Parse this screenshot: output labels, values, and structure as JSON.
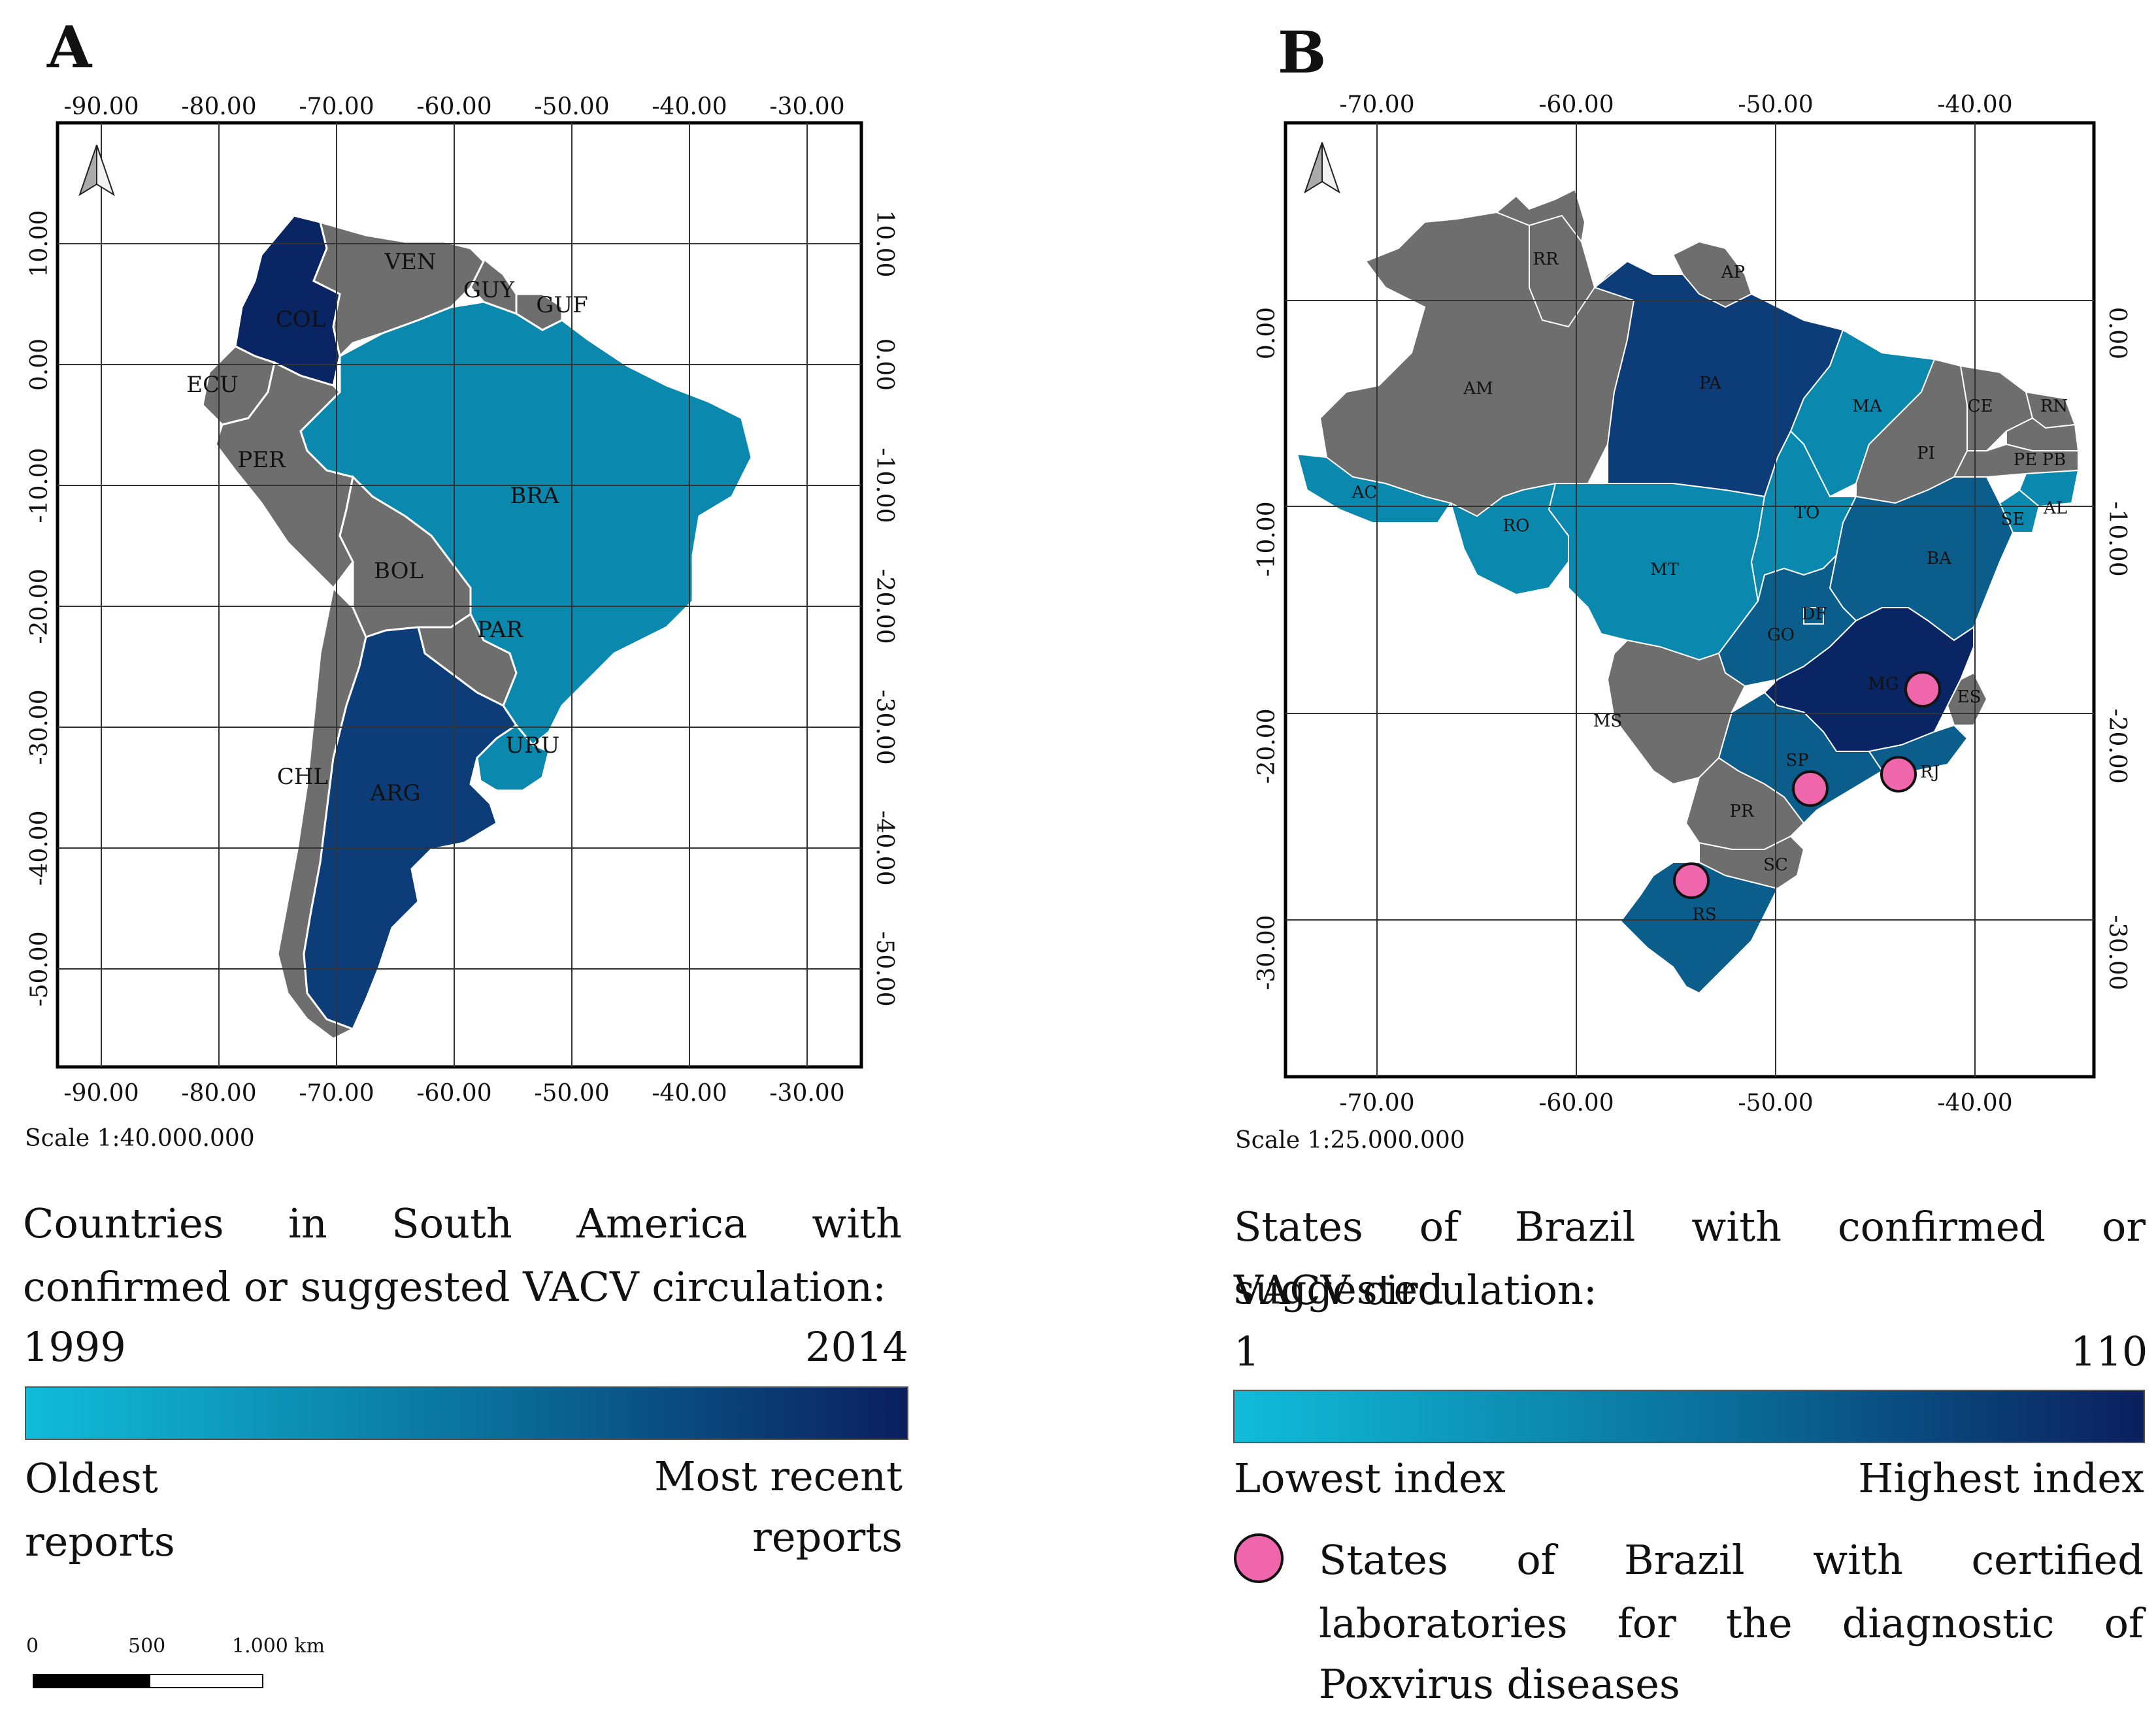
{
  "panel_a": {
    "letter": "A",
    "x_ticks": [
      "-90.00",
      "-80.00",
      "-70.00",
      "-60.00",
      "-50.00",
      "-40.00",
      "-30.00"
    ],
    "y_ticks": [
      "10.00",
      "0.00",
      "-10.00",
      "-20.00",
      "-30.00",
      "-40.00",
      "-50.00"
    ],
    "countries": [
      "COL",
      "VEN",
      "GUY",
      "GUF",
      "ECU",
      "PER",
      "BRA",
      "BOL",
      "PAR",
      "CHL",
      "ARG",
      "URU"
    ],
    "scale": "Scale 1:40.000.000",
    "legend_title": "Countries in South America with confirmed or suggested VACV circulation:",
    "legend_title_line1": "Countries in South America with",
    "legend_title_line2": "confirmed or suggested VACV circulation:",
    "range_min": "1999",
    "range_max": "2014",
    "low_label_1": "Oldest",
    "low_label_2": "reports",
    "high_label_1": "Most recent",
    "high_label_2": "reports",
    "km_ticks": [
      "0",
      "500",
      "1.000 km"
    ]
  },
  "panel_b": {
    "letter": "B",
    "x_ticks": [
      "-70.00",
      "-60.00",
      "-50.00",
      "-40.00"
    ],
    "y_ticks": [
      "0.00",
      "-10.00",
      "-20.00",
      "-30.00"
    ],
    "states": [
      "RR",
      "AP",
      "AM",
      "PA",
      "MA",
      "CE",
      "RN",
      "PI",
      "PB",
      "PE",
      "AC",
      "AL",
      "SE",
      "TO",
      "RO",
      "BA",
      "MT",
      "DF",
      "GO",
      "MG",
      "ES",
      "MS",
      "SP",
      "RJ",
      "PR",
      "SC",
      "RS"
    ],
    "scale": "Scale 1:25.000.000",
    "legend_title_line1": "States of Brazil with confirmed or suggested",
    "legend_title_line2": "VACV circulation:",
    "range_min": "1",
    "range_max": "110",
    "low_label": "Lowest index",
    "high_label": "Highest index",
    "lab_label_line1": "States of Brazil with certified",
    "lab_label_line2": "laboratories for the diagnostic of",
    "lab_label_line3": "Poxvirus diseases"
  },
  "colors": {
    "grey": "#6e6e6e",
    "light_blue": "#0a88ad",
    "mid_blue": "#0b5e8c",
    "dark_blue": "#0d3d78",
    "darkest": "#0a2563",
    "lab_marker": "#f066ad"
  }
}
